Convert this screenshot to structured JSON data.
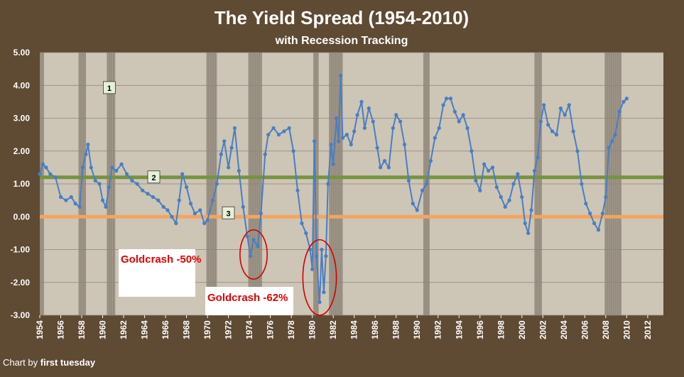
{
  "chart_data": {
    "type": "line",
    "title": "The Yield Spread (1954-2010)",
    "subtitle": "with Recession Tracking",
    "ylim": [
      -3.0,
      5.0
    ],
    "xlim": [
      1954,
      2013.5
    ],
    "y_ticks": [
      "5.00",
      "4.00",
      "3.00",
      "2.00",
      "1.00",
      "0.00",
      "-1.00",
      "-2.00",
      "-3.00"
    ],
    "x_ticks": [
      "1954",
      "1956",
      "1958",
      "1960",
      "1962",
      "1964",
      "1966",
      "1968",
      "1970",
      "1972",
      "1974",
      "1976",
      "1978",
      "1980",
      "1982",
      "1984",
      "1986",
      "1988",
      "1990",
      "1992",
      "1994",
      "1996",
      "1998",
      "2000",
      "2002",
      "2004",
      "2006",
      "2008",
      "2010",
      "2012"
    ],
    "grid": true,
    "reference_lines": [
      {
        "y": 1.2,
        "color": "#77933c",
        "label": "2"
      },
      {
        "y": 0.0,
        "color": "#f4a460",
        "label": "3"
      }
    ],
    "markers": [
      {
        "label": "1",
        "x": 1960.6,
        "y": 3.9
      }
    ],
    "recessions": [
      [
        1953.7,
        1954.4
      ],
      [
        1957.7,
        1958.4
      ],
      [
        1960.4,
        1961.2
      ],
      [
        1969.9,
        1970.9
      ],
      [
        1973.9,
        1975.2
      ],
      [
        1980.1,
        1980.6
      ],
      [
        1981.6,
        1982.9
      ],
      [
        1990.6,
        1991.2
      ],
      [
        2001.2,
        2001.9
      ],
      [
        2007.9,
        2009.5
      ]
    ],
    "series": [
      {
        "color": "#4a7ec2",
        "points": [
          [
            1954.0,
            1.3
          ],
          [
            1954.3,
            1.6
          ],
          [
            1954.6,
            1.5
          ],
          [
            1955.0,
            1.3
          ],
          [
            1955.5,
            1.2
          ],
          [
            1956.0,
            0.6
          ],
          [
            1956.5,
            0.5
          ],
          [
            1957.0,
            0.6
          ],
          [
            1957.4,
            0.4
          ],
          [
            1957.8,
            0.3
          ],
          [
            1958.1,
            1.5
          ],
          [
            1958.4,
            1.9
          ],
          [
            1958.6,
            2.2
          ],
          [
            1958.9,
            1.5
          ],
          [
            1959.3,
            1.1
          ],
          [
            1959.7,
            1.0
          ],
          [
            1960.0,
            0.5
          ],
          [
            1960.3,
            0.3
          ],
          [
            1960.6,
            0.9
          ],
          [
            1960.9,
            1.5
          ],
          [
            1961.3,
            1.4
          ],
          [
            1961.8,
            1.6
          ],
          [
            1962.3,
            1.3
          ],
          [
            1962.8,
            1.1
          ],
          [
            1963.3,
            1.0
          ],
          [
            1963.8,
            0.8
          ],
          [
            1964.3,
            0.7
          ],
          [
            1964.8,
            0.6
          ],
          [
            1965.3,
            0.5
          ],
          [
            1965.8,
            0.3
          ],
          [
            1966.2,
            0.2
          ],
          [
            1966.6,
            0.0
          ],
          [
            1967.0,
            -0.2
          ],
          [
            1967.3,
            0.5
          ],
          [
            1967.6,
            1.3
          ],
          [
            1968.0,
            0.9
          ],
          [
            1968.4,
            0.4
          ],
          [
            1968.8,
            0.1
          ],
          [
            1969.3,
            0.2
          ],
          [
            1969.7,
            -0.2
          ],
          [
            1970.0,
            -0.1
          ],
          [
            1970.5,
            0.5
          ],
          [
            1970.9,
            1.0
          ],
          [
            1971.3,
            1.9
          ],
          [
            1971.6,
            2.3
          ],
          [
            1972.0,
            1.5
          ],
          [
            1972.3,
            2.1
          ],
          [
            1972.6,
            2.7
          ],
          [
            1973.0,
            1.4
          ],
          [
            1973.4,
            0.3
          ],
          [
            1973.8,
            -0.6
          ],
          [
            1974.1,
            -1.2
          ],
          [
            1974.4,
            -0.7
          ],
          [
            1974.8,
            -0.9
          ],
          [
            1975.1,
            0.1
          ],
          [
            1975.5,
            1.9
          ],
          [
            1975.8,
            2.5
          ],
          [
            1976.3,
            2.7
          ],
          [
            1976.8,
            2.5
          ],
          [
            1977.3,
            2.6
          ],
          [
            1977.8,
            2.7
          ],
          [
            1978.2,
            2.0
          ],
          [
            1978.6,
            0.8
          ],
          [
            1979.0,
            -0.2
          ],
          [
            1979.4,
            -0.5
          ],
          [
            1979.8,
            -1.0
          ],
          [
            1980.0,
            -1.6
          ],
          [
            1980.2,
            2.3
          ],
          [
            1980.4,
            -1.2
          ],
          [
            1980.7,
            -2.6
          ],
          [
            1980.9,
            -1.0
          ],
          [
            1981.1,
            -2.3
          ],
          [
            1981.3,
            -1.2
          ],
          [
            1981.5,
            1.0
          ],
          [
            1981.8,
            2.2
          ],
          [
            1982.0,
            1.6
          ],
          [
            1982.3,
            3.0
          ],
          [
            1982.5,
            2.3
          ],
          [
            1982.7,
            4.3
          ],
          [
            1982.9,
            2.4
          ],
          [
            1983.3,
            2.5
          ],
          [
            1983.7,
            2.2
          ],
          [
            1984.0,
            2.6
          ],
          [
            1984.3,
            3.1
          ],
          [
            1984.7,
            3.5
          ],
          [
            1985.0,
            2.7
          ],
          [
            1985.4,
            3.3
          ],
          [
            1985.8,
            2.9
          ],
          [
            1986.2,
            2.1
          ],
          [
            1986.5,
            1.5
          ],
          [
            1986.9,
            1.7
          ],
          [
            1987.3,
            1.5
          ],
          [
            1987.7,
            2.7
          ],
          [
            1988.0,
            3.1
          ],
          [
            1988.4,
            2.9
          ],
          [
            1988.8,
            2.2
          ],
          [
            1989.2,
            1.1
          ],
          [
            1989.6,
            0.4
          ],
          [
            1990.0,
            0.2
          ],
          [
            1990.5,
            0.8
          ],
          [
            1990.9,
            1.0
          ],
          [
            1991.3,
            1.7
          ],
          [
            1991.7,
            2.4
          ],
          [
            1992.1,
            2.7
          ],
          [
            1992.5,
            3.4
          ],
          [
            1992.8,
            3.6
          ],
          [
            1993.2,
            3.6
          ],
          [
            1993.6,
            3.2
          ],
          [
            1994.0,
            2.9
          ],
          [
            1994.4,
            3.1
          ],
          [
            1994.8,
            2.7
          ],
          [
            1995.2,
            2.0
          ],
          [
            1995.6,
            1.1
          ],
          [
            1996.0,
            0.8
          ],
          [
            1996.4,
            1.6
          ],
          [
            1996.8,
            1.4
          ],
          [
            1997.2,
            1.5
          ],
          [
            1997.6,
            0.9
          ],
          [
            1998.0,
            0.6
          ],
          [
            1998.4,
            0.3
          ],
          [
            1998.8,
            0.5
          ],
          [
            1999.2,
            1.0
          ],
          [
            1999.6,
            1.3
          ],
          [
            2000.0,
            0.6
          ],
          [
            2000.3,
            -0.2
          ],
          [
            2000.6,
            -0.5
          ],
          [
            2000.9,
            0.2
          ],
          [
            2001.2,
            1.4
          ],
          [
            2001.5,
            1.8
          ],
          [
            2001.8,
            2.9
          ],
          [
            2002.1,
            3.4
          ],
          [
            2002.5,
            2.8
          ],
          [
            2002.9,
            2.6
          ],
          [
            2003.3,
            2.5
          ],
          [
            2003.7,
            3.3
          ],
          [
            2004.1,
            3.1
          ],
          [
            2004.5,
            3.4
          ],
          [
            2004.9,
            2.6
          ],
          [
            2005.3,
            2.0
          ],
          [
            2005.7,
            1.0
          ],
          [
            2006.1,
            0.4
          ],
          [
            2006.5,
            0.1
          ],
          [
            2006.9,
            -0.2
          ],
          [
            2007.3,
            -0.4
          ],
          [
            2007.7,
            0.1
          ],
          [
            2008.0,
            0.6
          ],
          [
            2008.3,
            2.1
          ],
          [
            2008.6,
            2.3
          ],
          [
            2008.9,
            2.5
          ],
          [
            2009.3,
            3.2
          ],
          [
            2009.7,
            3.5
          ],
          [
            2010.0,
            3.6
          ]
        ]
      }
    ],
    "annotations": [
      {
        "text": "Goldcrash -50%",
        "color": "#e00000"
      },
      {
        "text": "Goldcrash -62%",
        "color": "#e00000"
      }
    ],
    "ellipses": [
      {
        "cx": 1974.4,
        "cy": -1.15,
        "rx": 1.3,
        "ry": 0.75,
        "color": "#d00000"
      },
      {
        "cx": 1980.7,
        "cy": -1.85,
        "rx": 1.6,
        "ry": 1.15,
        "color": "#d00000"
      }
    ]
  },
  "credit": {
    "prefix": "Chart by",
    "brand": "first tuesday"
  },
  "colors": {
    "frame": "#5f4a33",
    "plot_bg": "#cdc5b6",
    "recession": "#8a8074",
    "series": "#4a7ec2"
  }
}
